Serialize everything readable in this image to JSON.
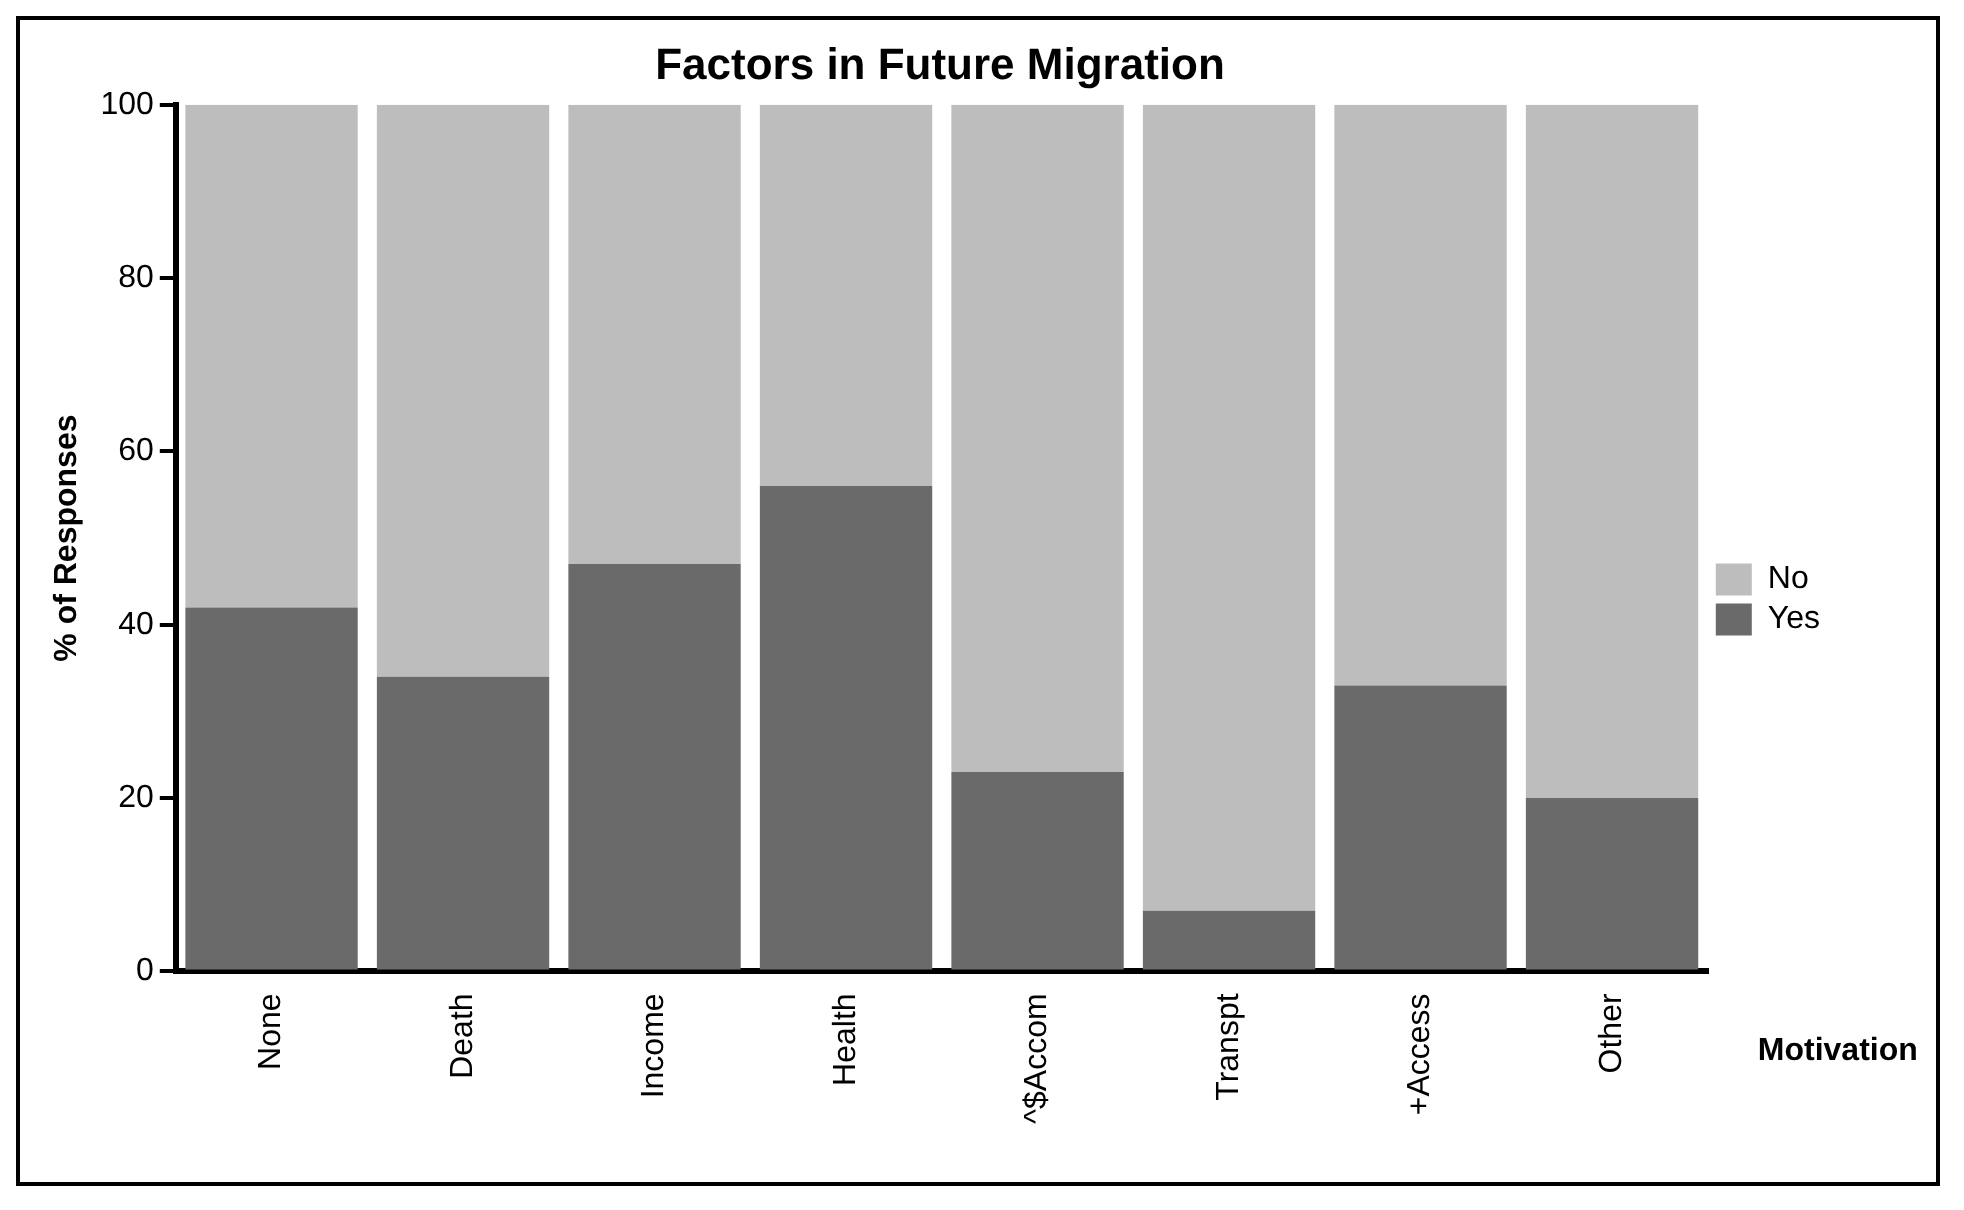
{
  "chart_data": {
    "type": "bar",
    "title": "Factors in Future Migration",
    "xlabel": "Motivation",
    "ylabel": "% of Responses",
    "categories": [
      "None",
      "Death",
      "Income",
      "Health",
      "^$Accom",
      "Transpt",
      "+Access",
      "Other"
    ],
    "series": [
      {
        "name": "Yes",
        "color": "#6a6a6a",
        "values": [
          42,
          34,
          47,
          56,
          23,
          7,
          33,
          20
        ]
      },
      {
        "name": "No",
        "color": "#bdbdbd",
        "values": [
          58,
          66,
          53,
          44,
          77,
          93,
          67,
          80
        ]
      }
    ],
    "stacked": true,
    "ylim": [
      0,
      100
    ],
    "yticks": [
      0,
      20,
      40,
      60,
      80,
      100
    ],
    "grid": false,
    "legend": "right"
  }
}
